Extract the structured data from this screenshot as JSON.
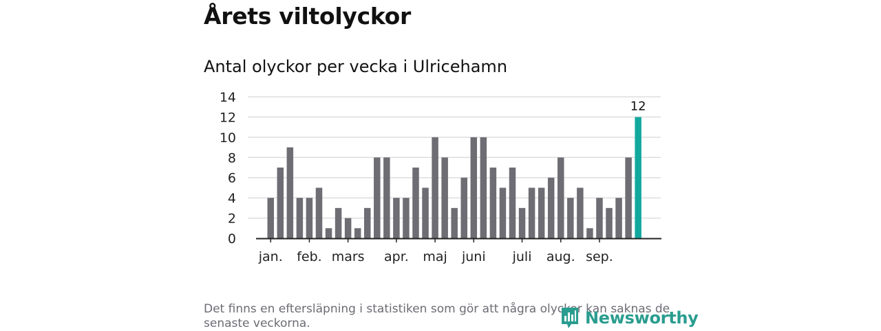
{
  "title": "Årets viltolyckor",
  "subtitle": "Antal olyckor per vecka i Ulricehamn",
  "footnote": "Det finns en eftersläpning i statistiken som gör att några olyckor kan saknas de senaste veckorna.",
  "brand": {
    "name": "Newsworthy",
    "color": "#2a9d8f"
  },
  "colors": {
    "bar": "#6e6d74",
    "highlight": "#13a89e",
    "grid": "#dddddd",
    "axis": "#222222"
  },
  "chart_data": {
    "type": "bar",
    "title": "Antal olyckor per vecka i Ulricehamn",
    "xlabel": "",
    "ylabel": "",
    "ylim": [
      0,
      14
    ],
    "yticks": [
      0,
      2,
      4,
      6,
      8,
      10,
      12,
      14
    ],
    "values": [
      4,
      7,
      9,
      4,
      4,
      5,
      1,
      3,
      2,
      1,
      3,
      8,
      8,
      4,
      4,
      7,
      5,
      10,
      8,
      3,
      6,
      10,
      10,
      7,
      5,
      7,
      3,
      5,
      5,
      6,
      8,
      4,
      5,
      1,
      4,
      3,
      4,
      8,
      12
    ],
    "highlight_index": 38,
    "highlight_label": "12",
    "month_labels": [
      {
        "label": "jan.",
        "week_index": 0
      },
      {
        "label": "feb.",
        "week_index": 4
      },
      {
        "label": "mars",
        "week_index": 8
      },
      {
        "label": "apr.",
        "week_index": 13
      },
      {
        "label": "maj",
        "week_index": 17
      },
      {
        "label": "juni",
        "week_index": 21
      },
      {
        "label": "juli",
        "week_index": 26
      },
      {
        "label": "aug.",
        "week_index": 30
      },
      {
        "label": "sep.",
        "week_index": 34
      }
    ],
    "grid": true
  }
}
